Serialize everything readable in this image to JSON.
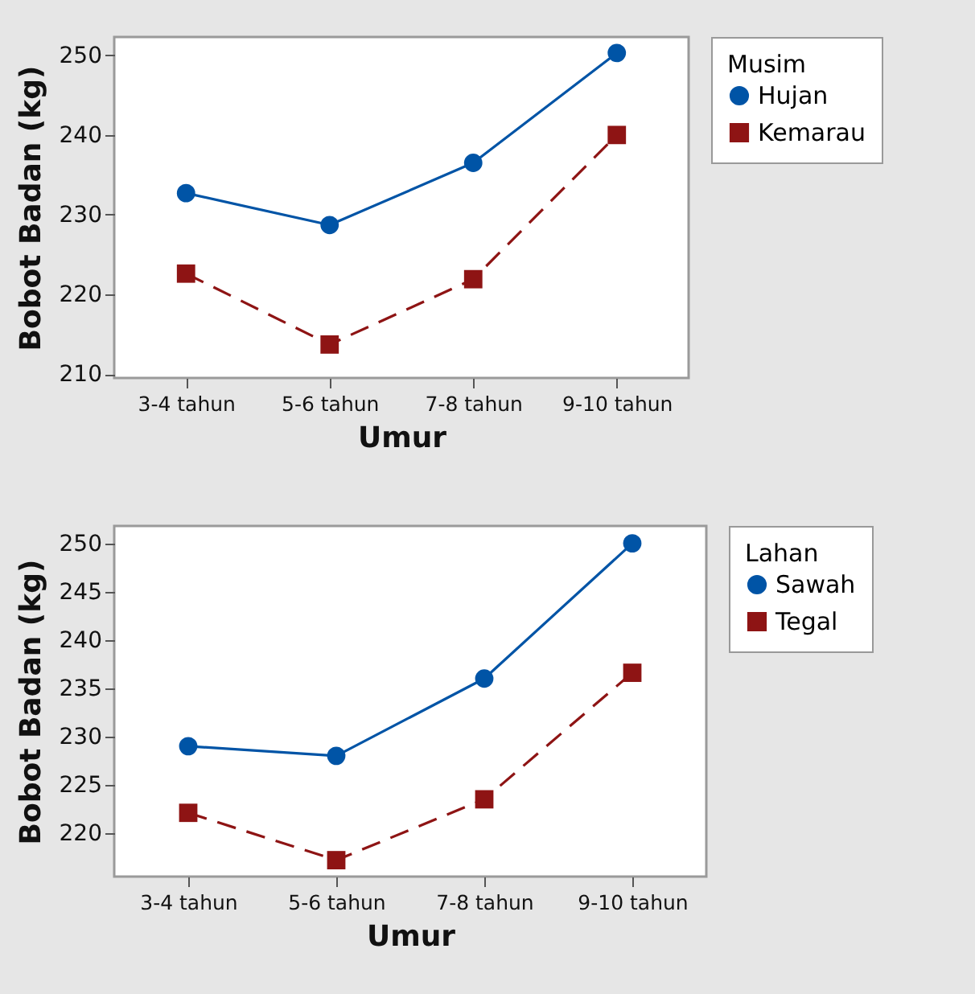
{
  "chart_data": [
    {
      "type": "line",
      "categories": [
        "3-4 tahun",
        "5-6 tahun",
        "7-8 tahun",
        "9-10 tahun"
      ],
      "xlabel": "Umur",
      "ylabel": "Bobot Badan (kg)",
      "legend_title": "Musim",
      "legend": "top right",
      "ylim": [
        209.5,
        252.3
      ],
      "yticks": [
        210,
        220,
        230,
        240,
        250
      ],
      "series": [
        {
          "name": "Hujan",
          "color": "#0054a6",
          "marker": "circle",
          "line_style": "solid",
          "values": [
            232.7,
            228.7,
            236.5,
            250.3
          ]
        },
        {
          "name": "Kemarau",
          "color": "#8e1414",
          "marker": "square",
          "line_style": "dashed",
          "values": [
            222.6,
            213.7,
            221.9,
            240.0
          ]
        }
      ]
    },
    {
      "type": "line",
      "categories": [
        "3-4 tahun",
        "5-6 tahun",
        "7-8 tahun",
        "9-10 tahun"
      ],
      "xlabel": "Umur",
      "ylabel": "Bobot Badan (kg)",
      "legend_title": "Lahan",
      "legend": "top right",
      "ylim": [
        215.5,
        251.8
      ],
      "yticks": [
        220,
        225,
        230,
        235,
        240,
        245,
        250
      ],
      "series": [
        {
          "name": "Sawah",
          "color": "#0054a6",
          "marker": "circle",
          "line_style": "solid",
          "values": [
            229.0,
            228.0,
            236.0,
            250.0
          ]
        },
        {
          "name": "Tegal",
          "color": "#8e1414",
          "marker": "square",
          "line_style": "dashed",
          "values": [
            222.1,
            217.2,
            223.5,
            236.6
          ]
        }
      ]
    }
  ]
}
